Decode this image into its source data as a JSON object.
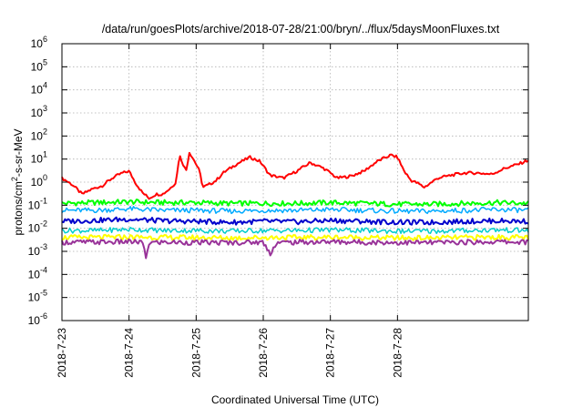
{
  "chart_data": {
    "type": "line",
    "title": "/data/run/goesPlots/archive/2018-07-28/21:00/bryn/../flux/5daysMoonFluxes.txt",
    "xlabel": "Coordinated Universal Time (UTC)",
    "ylabel": {
      "prefix": "protons/cm",
      "sup": "2",
      "suffix": "-s-sr-MeV"
    },
    "yscale": "log",
    "ylim": [
      1e-06,
      1000000.0
    ],
    "xlim": [
      0,
      6.95
    ],
    "x_units": "days since 2018-7-23 00:00 UTC",
    "x_ticks": [
      {
        "x": 0,
        "label": "2018-7-23"
      },
      {
        "x": 1,
        "label": "2018-7-24"
      },
      {
        "x": 2,
        "label": "2018-7-25"
      },
      {
        "x": 3,
        "label": "2018-7-26"
      },
      {
        "x": 4,
        "label": "2018-7-27"
      },
      {
        "x": 5,
        "label": "2018-7-28"
      }
    ],
    "y_ticks": [
      {
        "exp": -6,
        "label": "10",
        "sup": "-6"
      },
      {
        "exp": -5,
        "label": "10",
        "sup": "-5"
      },
      {
        "exp": -4,
        "label": "10",
        "sup": "-4"
      },
      {
        "exp": -3,
        "label": "10",
        "sup": "-3"
      },
      {
        "exp": -2,
        "label": "10",
        "sup": "-2"
      },
      {
        "exp": -1,
        "label": "10",
        "sup": "-1"
      },
      {
        "exp": 0,
        "label": "10",
        "sup": "0"
      },
      {
        "exp": 1,
        "label": "10",
        "sup": "1"
      },
      {
        "exp": 2,
        "label": "10",
        "sup": "2"
      },
      {
        "exp": 3,
        "label": "10",
        "sup": "3"
      },
      {
        "exp": 4,
        "label": "10",
        "sup": "4"
      },
      {
        "exp": 5,
        "label": "10",
        "sup": "5"
      },
      {
        "exp": 6,
        "label": "10",
        "sup": "6"
      }
    ],
    "grid": true,
    "legend": "none",
    "series": [
      {
        "color": "#ff0000",
        "width": 2,
        "x": [
          0,
          0.15,
          0.3,
          0.45,
          0.6,
          0.75,
          0.9,
          1.0,
          1.1,
          1.2,
          1.3,
          1.4,
          1.5,
          1.6,
          1.7,
          1.75,
          1.85,
          1.9,
          2.0,
          2.05,
          2.1,
          2.2,
          2.3,
          2.4,
          2.6,
          2.8,
          2.95,
          3.1,
          3.3,
          3.5,
          3.7,
          3.9,
          4.0,
          4.1,
          4.3,
          4.5,
          4.7,
          4.9,
          5.0,
          5.1,
          5.2,
          5.3,
          5.4,
          5.6,
          5.8,
          6.0,
          6.2,
          6.4,
          6.6,
          6.8,
          6.95
        ],
        "y": [
          1.5,
          0.8,
          0.3,
          0.5,
          0.7,
          1.5,
          2.5,
          3,
          0.9,
          0.35,
          0.2,
          0.3,
          0.3,
          0.5,
          1.0,
          15,
          3,
          20,
          6,
          3,
          0.6,
          0.8,
          1.2,
          2.5,
          6,
          12,
          8,
          2,
          1.5,
          3,
          7,
          4,
          2.5,
          1.5,
          1.8,
          3,
          8,
          15,
          12,
          3,
          1.2,
          0.9,
          0.6,
          1.5,
          2,
          2.5,
          2.5,
          2.2,
          4,
          6,
          9
        ]
      },
      {
        "color": "#00ff00",
        "width": 2,
        "x": [
          0,
          0.5,
          1,
          1.5,
          2,
          2.5,
          3,
          3.5,
          4,
          4.5,
          5,
          5.5,
          6,
          6.5,
          6.95
        ],
        "y": [
          0.12,
          0.13,
          0.14,
          0.13,
          0.13,
          0.12,
          0.12,
          0.12,
          0.13,
          0.12,
          0.11,
          0.11,
          0.12,
          0.13,
          0.12
        ]
      },
      {
        "color": "#00aaff",
        "width": 1.5,
        "x": [
          0,
          0.5,
          1,
          1.5,
          2,
          2.5,
          3,
          3.5,
          4,
          4.5,
          5,
          5.5,
          6,
          6.5,
          6.95
        ],
        "y": [
          0.06,
          0.06,
          0.07,
          0.06,
          0.06,
          0.055,
          0.06,
          0.06,
          0.065,
          0.06,
          0.055,
          0.055,
          0.06,
          0.065,
          0.06
        ]
      },
      {
        "color": "#0000cc",
        "width": 2,
        "x": [
          0,
          0.5,
          1,
          1.5,
          2,
          2.5,
          3,
          3.5,
          4,
          4.5,
          5,
          5.5,
          6,
          6.5,
          6.95
        ],
        "y": [
          0.02,
          0.022,
          0.025,
          0.021,
          0.02,
          0.018,
          0.02,
          0.019,
          0.022,
          0.02,
          0.018,
          0.018,
          0.02,
          0.021,
          0.02
        ]
      },
      {
        "color": "#00cccc",
        "width": 1.5,
        "x": [
          0,
          0.5,
          1,
          1.5,
          2,
          2.5,
          3,
          3.5,
          4,
          4.5,
          5,
          5.5,
          6,
          6.5,
          6.95
        ],
        "y": [
          0.008,
          0.008,
          0.009,
          0.008,
          0.008,
          0.0075,
          0.008,
          0.008,
          0.0085,
          0.008,
          0.0075,
          0.0075,
          0.008,
          0.0085,
          0.008
        ]
      },
      {
        "color": "#ffff00",
        "width": 2,
        "x": [
          0,
          0.5,
          1,
          1.5,
          2,
          2.5,
          3,
          3.5,
          4,
          4.5,
          5,
          5.5,
          6,
          6.5,
          6.95
        ],
        "y": [
          0.004,
          0.004,
          0.0042,
          0.004,
          0.004,
          0.0038,
          0.004,
          0.004,
          0.0041,
          0.004,
          0.0038,
          0.0038,
          0.004,
          0.0041,
          0.004
        ]
      },
      {
        "color": "#993399",
        "width": 2,
        "x": [
          0,
          0.5,
          1,
          1.2,
          1.25,
          1.3,
          1.5,
          2,
          2.5,
          3,
          3.1,
          3.2,
          3.5,
          4,
          4.5,
          5,
          5.5,
          6,
          6.5,
          6.95
        ],
        "y": [
          0.0025,
          0.0025,
          0.0026,
          0.0025,
          0.0005,
          0.0024,
          0.0025,
          0.0024,
          0.0024,
          0.0025,
          0.0008,
          0.0024,
          0.0025,
          0.0026,
          0.0025,
          0.0024,
          0.0024,
          0.0025,
          0.0026,
          0.0025
        ]
      }
    ]
  }
}
